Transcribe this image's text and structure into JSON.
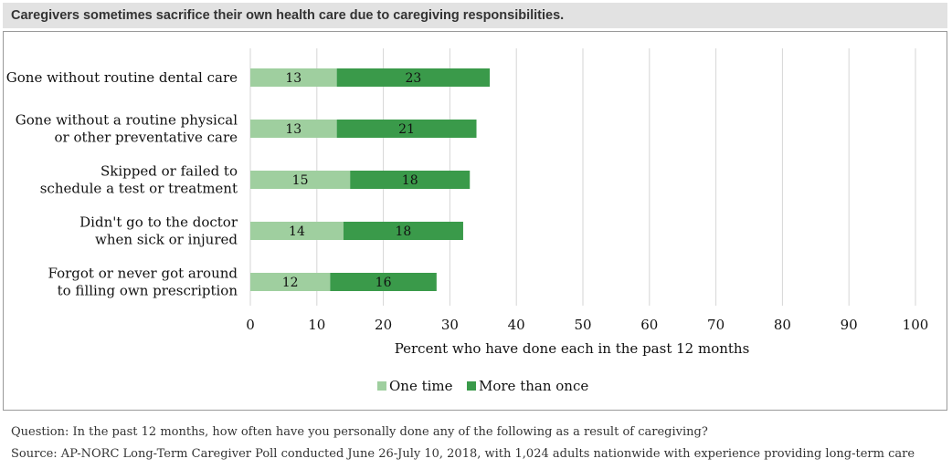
{
  "header": {
    "title": "Caregivers sometimes sacrifice their own health care due to caregiving responsibilities."
  },
  "footer": {
    "question": "Question: In the past 12 months, how often have you personally done any of the following as a result of caregiving?",
    "source": "Source: AP-NORC Long-Term Caregiver Poll conducted June 26-July 10, 2018, with 1,024 adults nationwide with experience providing long-term care"
  },
  "chart_data": {
    "type": "bar",
    "orientation": "horizontal",
    "stacked": true,
    "title": "",
    "xlabel": "Percent who have done each in the past 12 months",
    "ylabel": "",
    "xlim": [
      0,
      100
    ],
    "xticks": [
      0,
      10,
      20,
      30,
      40,
      50,
      60,
      70,
      80,
      90,
      100
    ],
    "grid": "vertical",
    "legend_position": "bottom",
    "categories": [
      [
        "Gone without routine dental care"
      ],
      [
        "Gone without a routine physical",
        "or other preventative care"
      ],
      [
        "Skipped or failed to",
        "schedule a test or treatment"
      ],
      [
        "Didn't go to the doctor",
        "when sick or injured"
      ],
      [
        "Forgot or never got around",
        "to filling own prescription"
      ]
    ],
    "series": [
      {
        "name": "One time",
        "color": "#9fcf9f",
        "values": [
          13,
          13,
          15,
          14,
          12
        ]
      },
      {
        "name": "More than once",
        "color": "#3a9a4a",
        "values": [
          23,
          21,
          18,
          18,
          16
        ]
      }
    ]
  }
}
